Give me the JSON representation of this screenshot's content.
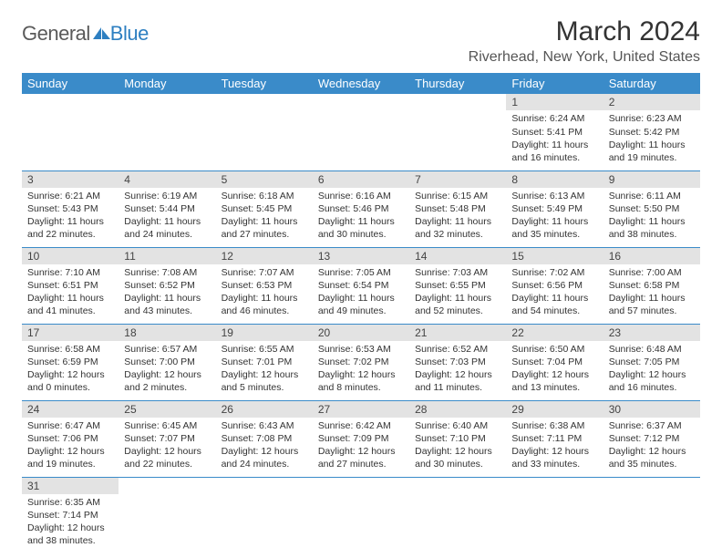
{
  "logo": {
    "general": "General",
    "blue": "Blue"
  },
  "title": "March 2024",
  "location": "Riverhead, New York, United States",
  "colors": {
    "header_bg": "#3a8bc9",
    "row_divider": "#3a8bc9",
    "daynum_bg": "#e3e3e3",
    "logo_blue": "#2d7fc1"
  },
  "weekdays": [
    "Sunday",
    "Monday",
    "Tuesday",
    "Wednesday",
    "Thursday",
    "Friday",
    "Saturday"
  ],
  "weeks": [
    [
      null,
      null,
      null,
      null,
      null,
      {
        "n": "1",
        "sr": "Sunrise: 6:24 AM",
        "ss": "Sunset: 5:41 PM",
        "d1": "Daylight: 11 hours",
        "d2": "and 16 minutes."
      },
      {
        "n": "2",
        "sr": "Sunrise: 6:23 AM",
        "ss": "Sunset: 5:42 PM",
        "d1": "Daylight: 11 hours",
        "d2": "and 19 minutes."
      }
    ],
    [
      {
        "n": "3",
        "sr": "Sunrise: 6:21 AM",
        "ss": "Sunset: 5:43 PM",
        "d1": "Daylight: 11 hours",
        "d2": "and 22 minutes."
      },
      {
        "n": "4",
        "sr": "Sunrise: 6:19 AM",
        "ss": "Sunset: 5:44 PM",
        "d1": "Daylight: 11 hours",
        "d2": "and 24 minutes."
      },
      {
        "n": "5",
        "sr": "Sunrise: 6:18 AM",
        "ss": "Sunset: 5:45 PM",
        "d1": "Daylight: 11 hours",
        "d2": "and 27 minutes."
      },
      {
        "n": "6",
        "sr": "Sunrise: 6:16 AM",
        "ss": "Sunset: 5:46 PM",
        "d1": "Daylight: 11 hours",
        "d2": "and 30 minutes."
      },
      {
        "n": "7",
        "sr": "Sunrise: 6:15 AM",
        "ss": "Sunset: 5:48 PM",
        "d1": "Daylight: 11 hours",
        "d2": "and 32 minutes."
      },
      {
        "n": "8",
        "sr": "Sunrise: 6:13 AM",
        "ss": "Sunset: 5:49 PM",
        "d1": "Daylight: 11 hours",
        "d2": "and 35 minutes."
      },
      {
        "n": "9",
        "sr": "Sunrise: 6:11 AM",
        "ss": "Sunset: 5:50 PM",
        "d1": "Daylight: 11 hours",
        "d2": "and 38 minutes."
      }
    ],
    [
      {
        "n": "10",
        "sr": "Sunrise: 7:10 AM",
        "ss": "Sunset: 6:51 PM",
        "d1": "Daylight: 11 hours",
        "d2": "and 41 minutes."
      },
      {
        "n": "11",
        "sr": "Sunrise: 7:08 AM",
        "ss": "Sunset: 6:52 PM",
        "d1": "Daylight: 11 hours",
        "d2": "and 43 minutes."
      },
      {
        "n": "12",
        "sr": "Sunrise: 7:07 AM",
        "ss": "Sunset: 6:53 PM",
        "d1": "Daylight: 11 hours",
        "d2": "and 46 minutes."
      },
      {
        "n": "13",
        "sr": "Sunrise: 7:05 AM",
        "ss": "Sunset: 6:54 PM",
        "d1": "Daylight: 11 hours",
        "d2": "and 49 minutes."
      },
      {
        "n": "14",
        "sr": "Sunrise: 7:03 AM",
        "ss": "Sunset: 6:55 PM",
        "d1": "Daylight: 11 hours",
        "d2": "and 52 minutes."
      },
      {
        "n": "15",
        "sr": "Sunrise: 7:02 AM",
        "ss": "Sunset: 6:56 PM",
        "d1": "Daylight: 11 hours",
        "d2": "and 54 minutes."
      },
      {
        "n": "16",
        "sr": "Sunrise: 7:00 AM",
        "ss": "Sunset: 6:58 PM",
        "d1": "Daylight: 11 hours",
        "d2": "and 57 minutes."
      }
    ],
    [
      {
        "n": "17",
        "sr": "Sunrise: 6:58 AM",
        "ss": "Sunset: 6:59 PM",
        "d1": "Daylight: 12 hours",
        "d2": "and 0 minutes."
      },
      {
        "n": "18",
        "sr": "Sunrise: 6:57 AM",
        "ss": "Sunset: 7:00 PM",
        "d1": "Daylight: 12 hours",
        "d2": "and 2 minutes."
      },
      {
        "n": "19",
        "sr": "Sunrise: 6:55 AM",
        "ss": "Sunset: 7:01 PM",
        "d1": "Daylight: 12 hours",
        "d2": "and 5 minutes."
      },
      {
        "n": "20",
        "sr": "Sunrise: 6:53 AM",
        "ss": "Sunset: 7:02 PM",
        "d1": "Daylight: 12 hours",
        "d2": "and 8 minutes."
      },
      {
        "n": "21",
        "sr": "Sunrise: 6:52 AM",
        "ss": "Sunset: 7:03 PM",
        "d1": "Daylight: 12 hours",
        "d2": "and 11 minutes."
      },
      {
        "n": "22",
        "sr": "Sunrise: 6:50 AM",
        "ss": "Sunset: 7:04 PM",
        "d1": "Daylight: 12 hours",
        "d2": "and 13 minutes."
      },
      {
        "n": "23",
        "sr": "Sunrise: 6:48 AM",
        "ss": "Sunset: 7:05 PM",
        "d1": "Daylight: 12 hours",
        "d2": "and 16 minutes."
      }
    ],
    [
      {
        "n": "24",
        "sr": "Sunrise: 6:47 AM",
        "ss": "Sunset: 7:06 PM",
        "d1": "Daylight: 12 hours",
        "d2": "and 19 minutes."
      },
      {
        "n": "25",
        "sr": "Sunrise: 6:45 AM",
        "ss": "Sunset: 7:07 PM",
        "d1": "Daylight: 12 hours",
        "d2": "and 22 minutes."
      },
      {
        "n": "26",
        "sr": "Sunrise: 6:43 AM",
        "ss": "Sunset: 7:08 PM",
        "d1": "Daylight: 12 hours",
        "d2": "and 24 minutes."
      },
      {
        "n": "27",
        "sr": "Sunrise: 6:42 AM",
        "ss": "Sunset: 7:09 PM",
        "d1": "Daylight: 12 hours",
        "d2": "and 27 minutes."
      },
      {
        "n": "28",
        "sr": "Sunrise: 6:40 AM",
        "ss": "Sunset: 7:10 PM",
        "d1": "Daylight: 12 hours",
        "d2": "and 30 minutes."
      },
      {
        "n": "29",
        "sr": "Sunrise: 6:38 AM",
        "ss": "Sunset: 7:11 PM",
        "d1": "Daylight: 12 hours",
        "d2": "and 33 minutes."
      },
      {
        "n": "30",
        "sr": "Sunrise: 6:37 AM",
        "ss": "Sunset: 7:12 PM",
        "d1": "Daylight: 12 hours",
        "d2": "and 35 minutes."
      }
    ],
    [
      {
        "n": "31",
        "sr": "Sunrise: 6:35 AM",
        "ss": "Sunset: 7:14 PM",
        "d1": "Daylight: 12 hours",
        "d2": "and 38 minutes."
      },
      null,
      null,
      null,
      null,
      null,
      null
    ]
  ]
}
